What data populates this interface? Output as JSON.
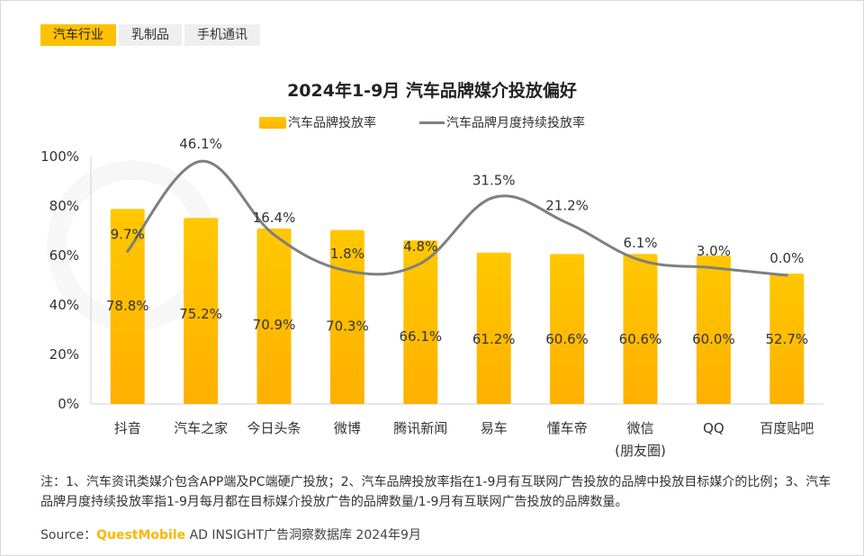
{
  "tabs": [
    "汽车行业",
    "乳制品",
    "手机通讯"
  ],
  "active_tab": 0,
  "note": "注：1、汽车资讯类媒介包含APP端及PC端硬广投放；2、汽车品牌投放率指在1-9月有互联网广告投放的品牌中投放目标媒介的比例；3、汽车品牌月度持续投放率指1-9月每月都在目标媒介投放广告的品牌数量/1-9月有互联网广告投放的品牌数量。",
  "source": {
    "prefix": "Source：",
    "brand": "QuestMobile",
    "rest": " AD INSIGHT广告洞察数据库 2024年9月"
  },
  "colors": {
    "bar": "#ffbe00",
    "line": "#7f7f7f",
    "tab_active": "#ffc000"
  },
  "chart_data": {
    "type": "bar",
    "title": "2024年1-9月 汽车品牌媒介投放偏好",
    "categories": [
      "抖音",
      "汽车之家",
      "今日头条",
      "微博",
      "腾讯新闻",
      "易车",
      "懂车帝",
      "微信\n(朋友圈)",
      "QQ",
      "百度贴吧"
    ],
    "series": [
      {
        "name": "汽车品牌投放率",
        "kind": "bar",
        "values": [
          78.8,
          75.2,
          70.9,
          70.3,
          66.1,
          61.2,
          60.6,
          60.6,
          60.0,
          52.7
        ],
        "labels": [
          "78.8%",
          "75.2%",
          "70.9%",
          "70.3%",
          "66.1%",
          "61.2%",
          "60.6%",
          "60.6%",
          "60.0%",
          "52.7%"
        ]
      },
      {
        "name": "汽车品牌月度持续投放率",
        "kind": "line",
        "values": [
          9.7,
          46.1,
          16.4,
          1.8,
          4.8,
          31.5,
          21.2,
          6.1,
          3.0,
          0.0
        ],
        "labels": [
          "9.7%",
          "46.1%",
          "16.4%",
          "1.8%",
          "4.8%",
          "31.5%",
          "21.2%",
          "6.1%",
          "3.0%",
          "0.0%"
        ]
      }
    ],
    "y_ticks": [
      "0%",
      "20%",
      "40%",
      "60%",
      "80%",
      "100%"
    ],
    "ylim": [
      0,
      100
    ],
    "xlabel": "",
    "ylabel": "",
    "legend_position": "top-center",
    "grid": false
  }
}
